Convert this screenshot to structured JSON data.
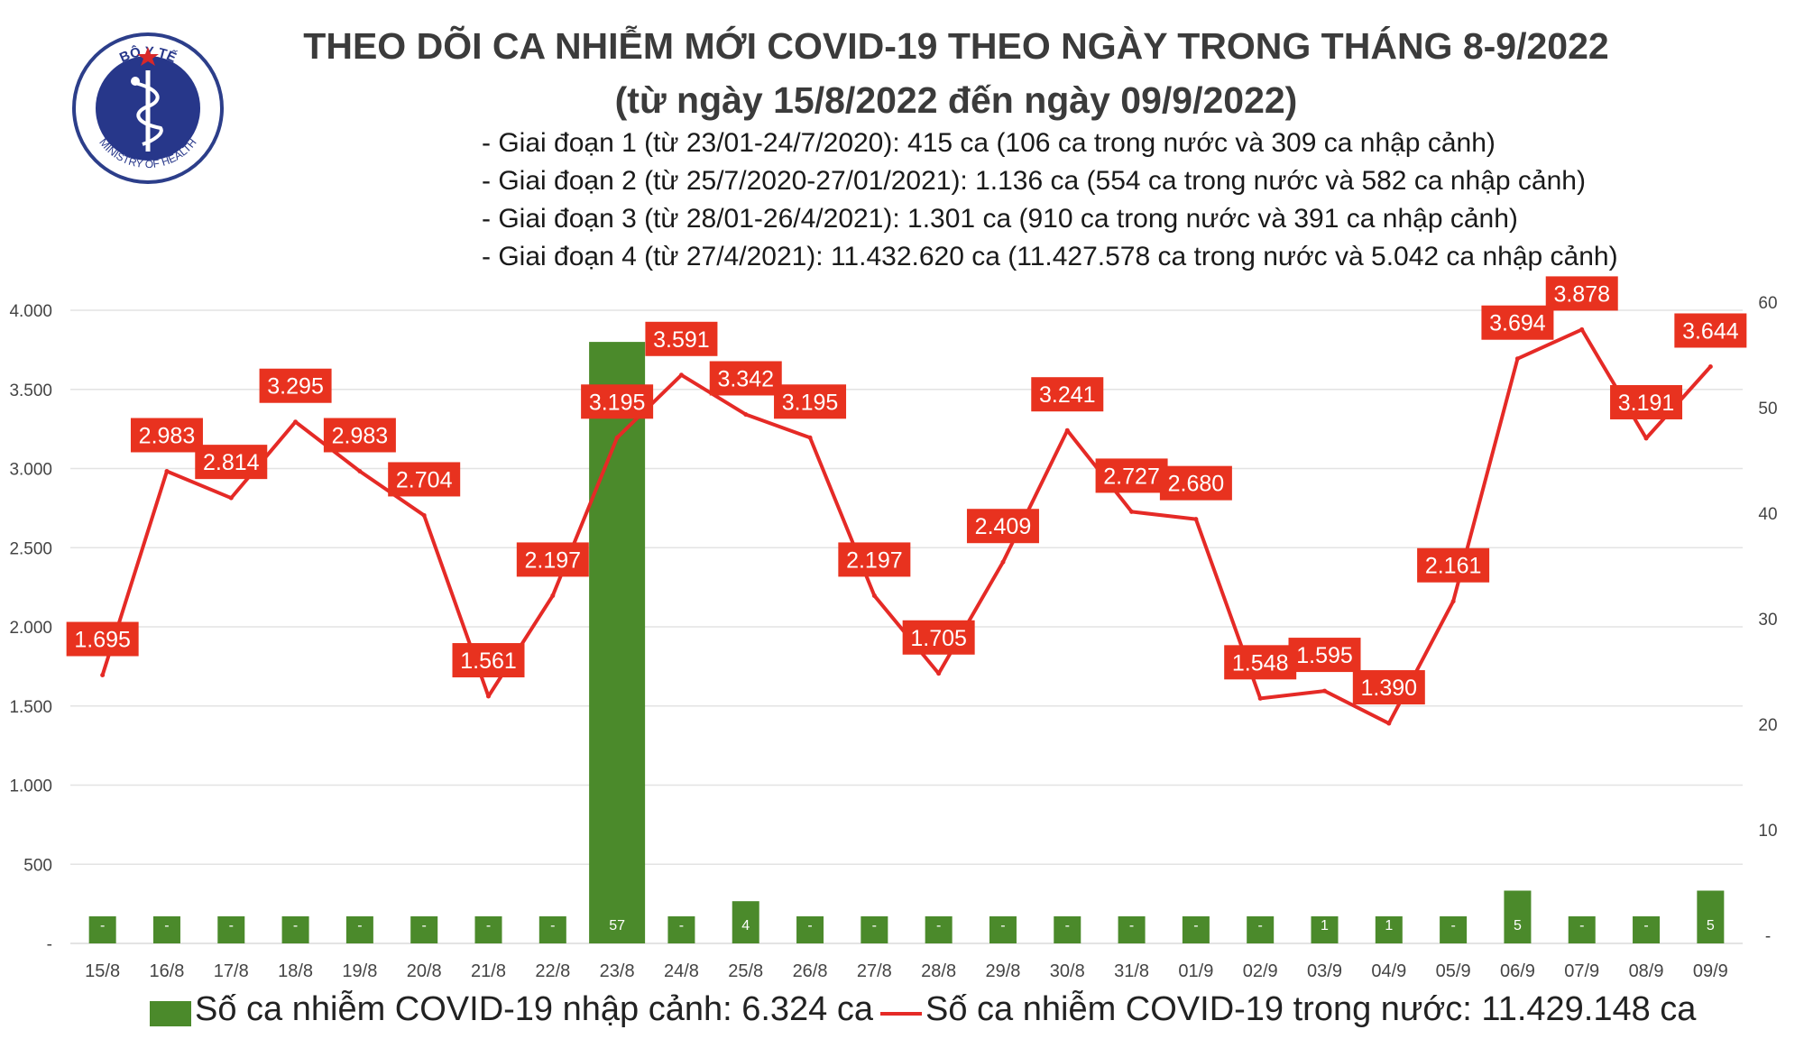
{
  "title": "THEO DÕI CA NHIỄM MỚI COVID-19 THEO NGÀY TRONG THÁNG 8-9/2022",
  "subtitle": "(từ ngày 15/8/2022 đến ngày 09/9/2022)",
  "notes": [
    "- Giai đoạn 1 (từ 23/01-24/7/2020): 415 ca (106 ca trong nước và 309 ca nhập cảnh)",
    "- Giai đoạn 2 (từ 25/7/2020-27/01/2021): 1.136 ca (554 ca trong nước và 582 ca nhập cảnh)",
    "- Giai đoạn 3 (từ 28/01-26/4/2021): 1.301 ca (910 ca trong nước và 391 ca nhập cảnh)",
    "- Giai đoạn 4 (từ 27/4/2021): 11.432.620 ca (11.427.578 ca trong nước và 5.042 ca nhập cảnh)"
  ],
  "logo": {
    "top_text": "BỘ Y TẾ",
    "bottom_text": "MINISTRY OF HEALTH"
  },
  "legend": {
    "bar_label": "Số ca nhiễm COVID-19 nhập cảnh: 6.324 ca",
    "line_label": "Số ca nhiễm COVID-19 trong nước: 11.429.148 ca"
  },
  "colors": {
    "bar": "#4b8a2b",
    "line": "#e52a26",
    "label_bg": "#e8321f",
    "grid": "#e3e3e3",
    "title": "#3b3b3b"
  },
  "chart_data": {
    "type": "bar+line",
    "categories": [
      "15/8",
      "16/8",
      "17/8",
      "18/8",
      "19/8",
      "20/8",
      "21/8",
      "22/8",
      "23/8",
      "24/8",
      "25/8",
      "26/8",
      "27/8",
      "28/8",
      "29/8",
      "30/8",
      "31/8",
      "01/9",
      "02/9",
      "03/9",
      "04/9",
      "05/9",
      "06/9",
      "07/9",
      "08/9",
      "09/9"
    ],
    "series": [
      {
        "name": "Số ca nhiễm COVID-19 nhập cảnh",
        "type": "bar",
        "axis": "right",
        "values": [
          0,
          0,
          0,
          0,
          0,
          0,
          0,
          0,
          57,
          0,
          4,
          0,
          0,
          0,
          0,
          0,
          0,
          0,
          0,
          1,
          1,
          0,
          5,
          0,
          0,
          5
        ],
        "labels": [
          "-",
          "-",
          "-",
          "-",
          "-",
          "-",
          "-",
          "-",
          "57",
          "-",
          "4",
          "-",
          "-",
          "-",
          "-",
          "-",
          "-",
          "-",
          "-",
          "1",
          "1",
          "-",
          "5",
          "-",
          "-",
          "5"
        ]
      },
      {
        "name": "Số ca nhiễm COVID-19 trong nước",
        "type": "line",
        "axis": "left",
        "values": [
          1695,
          2983,
          2814,
          3295,
          2983,
          2704,
          1561,
          2197,
          3195,
          3591,
          3342,
          3195,
          2197,
          1705,
          2409,
          3241,
          2727,
          2680,
          1548,
          1595,
          1390,
          2161,
          3694,
          3878,
          3191,
          3644
        ],
        "labels": [
          "1.695",
          "2.983",
          "2.814",
          "3.295",
          "2.983",
          "2.704",
          "1.561",
          "2.197",
          "3.195",
          "3.591",
          "3.342",
          "3.195",
          "2.197",
          "1.705",
          "2.409",
          "3.241",
          "2.727",
          "2.680",
          "1.548",
          "1.595",
          "1.390",
          "2.161",
          "3.694",
          "3.878",
          "3.191",
          "3.644"
        ]
      }
    ],
    "y_left": {
      "range": [
        0,
        4000
      ],
      "ticks": [
        0,
        500,
        1000,
        1500,
        2000,
        2500,
        3000,
        3500,
        4000
      ],
      "tick_labels": [
        "-",
        "500",
        "1.000",
        "1.500",
        "2.000",
        "2.500",
        "3.000",
        "3.500",
        "4.000"
      ]
    },
    "y_right": {
      "range": [
        0,
        60
      ],
      "ticks": [
        0,
        10,
        20,
        30,
        40,
        50,
        60
      ],
      "tick_labels": [
        "-",
        "10",
        "20",
        "30",
        "40",
        "50",
        "60"
      ]
    },
    "grid": true,
    "legend_position": "bottom"
  }
}
